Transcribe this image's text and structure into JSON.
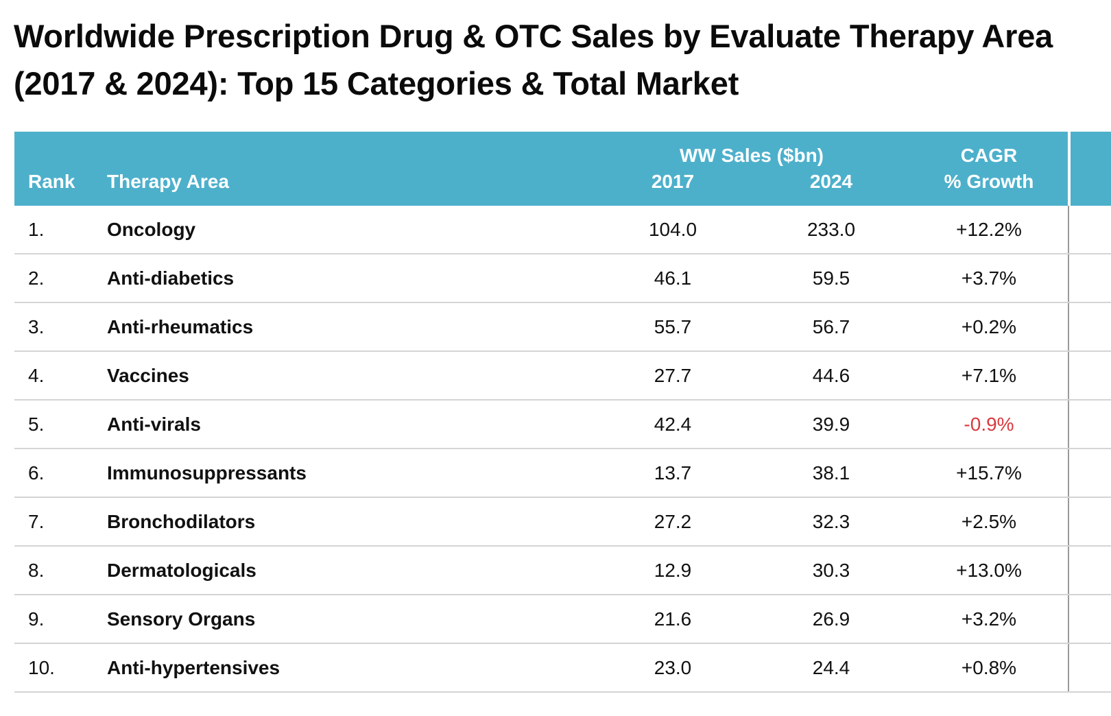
{
  "title": "Worldwide Prescription Drug & OTC Sales by Evaluate Therapy Area (2017 & 2024): Top 15 Categories & Total Market",
  "header": {
    "rank": "Rank",
    "therapy_area": "Therapy Area",
    "sales_group": "WW Sales ($bn)",
    "year_2017": "2017",
    "year_2024": "2024",
    "cagr_line1": "CAGR",
    "cagr_line2": "% Growth"
  },
  "colors": {
    "header_bg": "#4db0cb",
    "negative": "#d9393e"
  },
  "chart_data": {
    "type": "table",
    "title": "Worldwide Prescription Drug & OTC Sales by Evaluate Therapy Area (2017 & 2024): Top 15 Categories & Total Market",
    "columns": [
      "Rank",
      "Therapy Area",
      "2017",
      "2024",
      "% Growth"
    ],
    "rows": [
      {
        "rank": "1.",
        "area": "Oncology",
        "sales_2017": "104.0",
        "sales_2024": "233.0",
        "cagr": "+12.2%",
        "negative": false
      },
      {
        "rank": "2.",
        "area": "Anti-diabetics",
        "sales_2017": "46.1",
        "sales_2024": "59.5",
        "cagr": "+3.7%",
        "negative": false
      },
      {
        "rank": "3.",
        "area": "Anti-rheumatics",
        "sales_2017": "55.7",
        "sales_2024": "56.7",
        "cagr": "+0.2%",
        "negative": false
      },
      {
        "rank": "4.",
        "area": "Vaccines",
        "sales_2017": "27.7",
        "sales_2024": "44.6",
        "cagr": "+7.1%",
        "negative": false
      },
      {
        "rank": "5.",
        "area": "Anti-virals",
        "sales_2017": "42.4",
        "sales_2024": "39.9",
        "cagr": "-0.9%",
        "negative": true
      },
      {
        "rank": "6.",
        "area": "Immunosuppressants",
        "sales_2017": "13.7",
        "sales_2024": "38.1",
        "cagr": "+15.7%",
        "negative": false
      },
      {
        "rank": "7.",
        "area": "Bronchodilators",
        "sales_2017": "27.2",
        "sales_2024": "32.3",
        "cagr": "+2.5%",
        "negative": false
      },
      {
        "rank": "8.",
        "area": "Dermatologicals",
        "sales_2017": "12.9",
        "sales_2024": "30.3",
        "cagr": "+13.0%",
        "negative": false
      },
      {
        "rank": "9.",
        "area": "Sensory Organs",
        "sales_2017": "21.6",
        "sales_2024": "26.9",
        "cagr": "+3.2%",
        "negative": false
      },
      {
        "rank": "10.",
        "area": "Anti-hypertensives",
        "sales_2017": "23.0",
        "sales_2024": "24.4",
        "cagr": "+0.8%",
        "negative": false
      }
    ]
  }
}
